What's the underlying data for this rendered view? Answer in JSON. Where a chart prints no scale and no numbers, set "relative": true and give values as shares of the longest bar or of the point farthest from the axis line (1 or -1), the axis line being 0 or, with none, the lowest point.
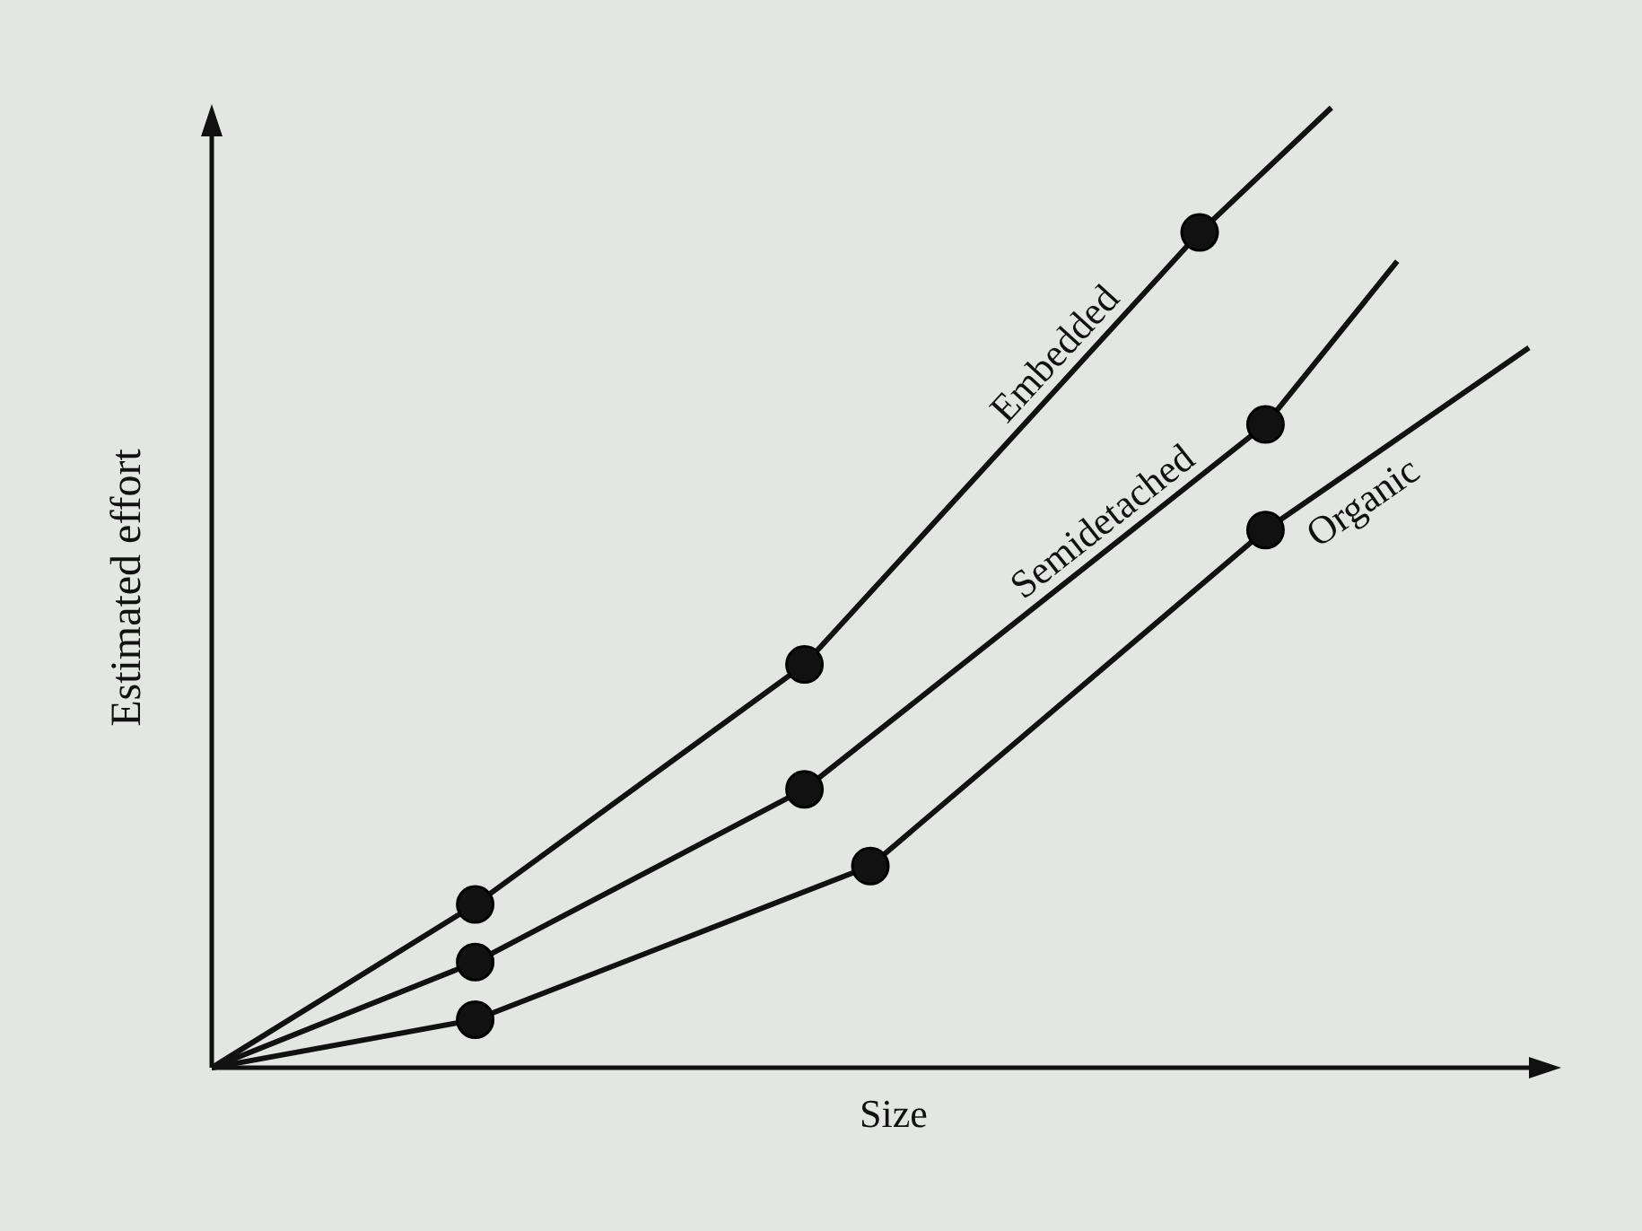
{
  "chart_data": {
    "type": "line",
    "relative": true,
    "xlabel": "Size",
    "ylabel": "Estimated effort",
    "categories": [
      null,
      null,
      null,
      null,
      null,
      null,
      null,
      null,
      null,
      null,
      null,
      null,
      null,
      null,
      null,
      null,
      null,
      null,
      null,
      null,
      null
    ],
    "grid": false,
    "line_style": "solid",
    "marker": "circle",
    "series": [
      {
        "name": "Embedded",
        "color": "#111111",
        "values": [
          0,
          null,
          null,
          null,
          0.17,
          null,
          null,
          null,
          null,
          0.42,
          null,
          null,
          null,
          null,
          null,
          0.87,
          null,
          1,
          null,
          null,
          null
        ]
      },
      {
        "name": "Semidetached",
        "color": "#111111",
        "values": [
          0,
          null,
          null,
          null,
          0.11,
          null,
          null,
          null,
          null,
          0.29,
          null,
          null,
          null,
          null,
          null,
          null,
          0.67,
          null,
          0.84,
          null,
          null
        ]
      },
      {
        "name": "Organic",
        "color": "#111111",
        "values": [
          0,
          null,
          null,
          null,
          0.05,
          null,
          null,
          null,
          null,
          null,
          0.21,
          null,
          null,
          null,
          null,
          null,
          0.56,
          null,
          null,
          null,
          0.75
        ]
      }
    ]
  }
}
